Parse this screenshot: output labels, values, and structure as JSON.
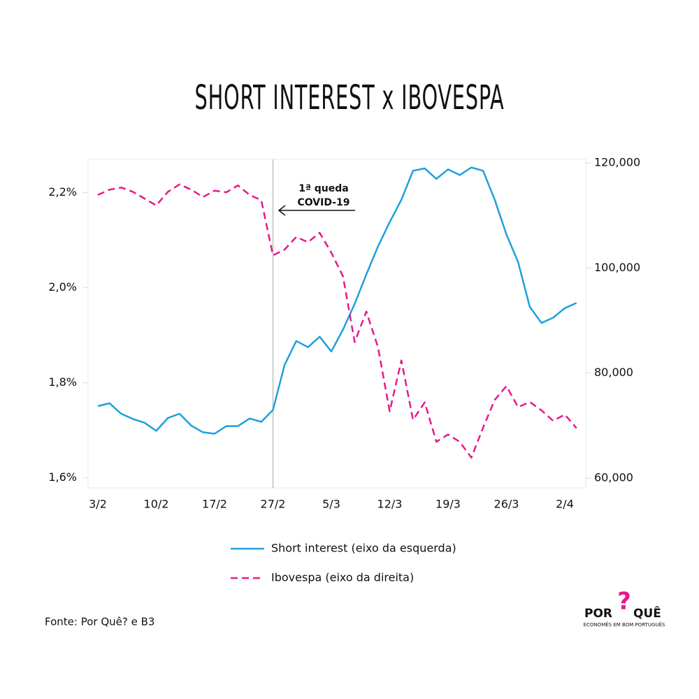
{
  "chart_data": {
    "type": "line",
    "title": "SHORT INTEREST x IBOVESPA",
    "categories": [
      "3/2",
      null,
      null,
      null,
      null,
      "10/2",
      null,
      null,
      null,
      null,
      "17/2",
      null,
      null,
      null,
      null,
      "27/2",
      null,
      null,
      null,
      null,
      "5/3",
      null,
      null,
      null,
      null,
      "12/3",
      null,
      null,
      null,
      null,
      "19/3",
      null,
      null,
      null,
      null,
      "26/3",
      null,
      null,
      null,
      null,
      "2/4",
      null
    ],
    "series": [
      {
        "name": "Short interest (eixo da esquerda)",
        "color": "#1ea0dc",
        "axis": "y",
        "values": [
          1.751,
          1.757,
          1.735,
          1.724,
          1.716,
          1.699,
          1.726,
          1.735,
          1.71,
          1.696,
          1.693,
          1.709,
          1.709,
          1.725,
          1.718,
          1.743,
          1.838,
          1.888,
          1.875,
          1.897,
          1.866,
          1.912,
          1.966,
          2.028,
          2.087,
          2.138,
          2.185,
          2.246,
          2.251,
          2.229,
          2.249,
          2.237,
          2.253,
          2.246,
          2.185,
          2.112,
          2.054,
          1.96,
          1.926,
          1.937,
          1.957,
          1.968
        ]
      },
      {
        "name": "Ibovespa (eixo da direita)",
        "color": "#e6198c",
        "axis": "y2",
        "dashed": true,
        "values": [
          113900,
          114900,
          115300,
          114500,
          113200,
          111900,
          114500,
          115900,
          114900,
          113500,
          114700,
          114400,
          115700,
          113900,
          112900,
          102400,
          103500,
          105900,
          104900,
          106700,
          102900,
          98400,
          85900,
          91700,
          84900,
          72700,
          82400,
          71100,
          74400,
          66900,
          68300,
          66900,
          63900,
          69600,
          74900,
          77500,
          73500,
          74500,
          72900,
          70900,
          72100,
          69500
        ]
      }
    ],
    "ylim": [
      1.579,
      2.27
    ],
    "yticks": [
      {
        "value": 1.6,
        "label": "1,6%"
      },
      {
        "value": 1.8,
        "label": "1,8%"
      },
      {
        "value": 2.0,
        "label": "2,0%"
      },
      {
        "value": 2.2,
        "label": "2,2%"
      }
    ],
    "y2lim": [
      58133,
      120667
    ],
    "y2ticks": [
      {
        "value": 60000,
        "label": "60,000"
      },
      {
        "value": 80000,
        "label": "80,000"
      },
      {
        "value": 100000,
        "label": "100,000"
      },
      {
        "value": 120000,
        "label": "120,000"
      }
    ],
    "annotation": [
      "1ª queda",
      "COVID-19"
    ],
    "source": "Fonte: Por Quê? e B3",
    "logo": {
      "left": "POR",
      "mark": "?",
      "right": "QUÊ",
      "tagline": "ECONOMÊS EM BOM PORTUGUÊS"
    }
  }
}
